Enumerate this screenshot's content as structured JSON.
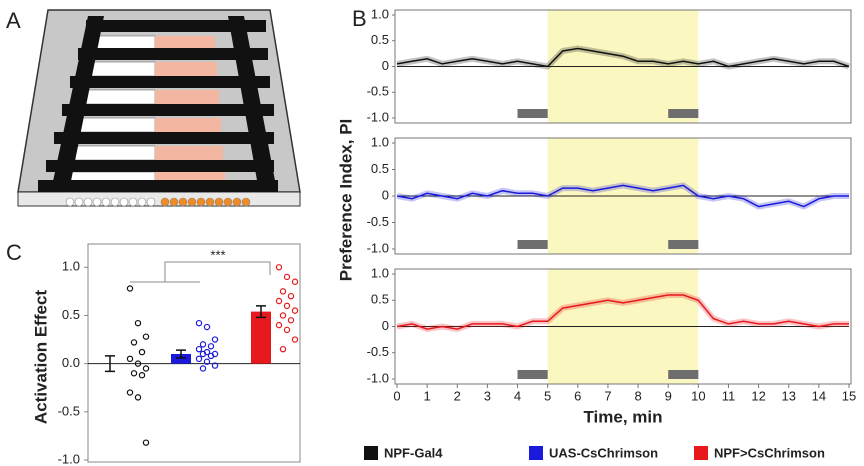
{
  "panel_a": {
    "label": "A"
  },
  "chart_data": [
    {
      "type": "line",
      "label": "B",
      "x": [
        0,
        0.5,
        1,
        1.5,
        2,
        2.5,
        3,
        3.5,
        4,
        4.5,
        5,
        5.5,
        6,
        6.5,
        7,
        7.5,
        8,
        8.5,
        9,
        9.5,
        10,
        10.5,
        11,
        11.5,
        12,
        12.5,
        13,
        13.5,
        14,
        14.5,
        15
      ],
      "series": [
        {
          "name": "NPF-Gal4",
          "color": "#111111",
          "values": [
            0.05,
            0.1,
            0.15,
            0.05,
            0.1,
            0.15,
            0.1,
            0.05,
            0.1,
            0.05,
            0.0,
            0.3,
            0.35,
            0.3,
            0.25,
            0.2,
            0.1,
            0.1,
            0.05,
            0.1,
            0.05,
            0.1,
            0.0,
            0.05,
            0.1,
            0.15,
            0.1,
            0.05,
            0.1,
            0.1,
            0.0
          ]
        }
      ],
      "xlim": [
        0,
        15
      ],
      "ylim": [
        -1,
        1
      ],
      "yticks": [
        {
          "value": 1,
          "label": "1.0"
        },
        0.5,
        0,
        -0.5,
        {
          "value": -1,
          "label": "-1.0"
        }
      ],
      "highlight_x": [
        5,
        10
      ],
      "stim_x": [
        [
          4,
          5
        ],
        [
          9,
          10
        ]
      ]
    },
    {
      "type": "line",
      "x": [
        0,
        0.5,
        1,
        1.5,
        2,
        2.5,
        3,
        3.5,
        4,
        4.5,
        5,
        5.5,
        6,
        6.5,
        7,
        7.5,
        8,
        8.5,
        9,
        9.5,
        10,
        10.5,
        11,
        11.5,
        12,
        12.5,
        13,
        13.5,
        14,
        14.5,
        15
      ],
      "series": [
        {
          "name": "UAS-CsChrimson",
          "color": "#1a1adc",
          "values": [
            0,
            -0.05,
            0.05,
            0,
            -0.05,
            0.05,
            0,
            0.1,
            0.05,
            0.05,
            0,
            0.15,
            0.15,
            0.1,
            0.15,
            0.2,
            0.15,
            0.1,
            0.15,
            0.2,
            0.0,
            -0.05,
            0,
            -0.05,
            -0.2,
            -0.15,
            -0.1,
            -0.2,
            -0.05,
            0,
            0
          ]
        }
      ],
      "xlim": [
        0,
        15
      ],
      "ylim": [
        -1,
        1
      ],
      "yticks": [
        {
          "value": 1,
          "label": "1.0"
        },
        0.5,
        0,
        -0.5,
        {
          "value": -1,
          "label": "-1.0"
        }
      ],
      "ylabel": "Preference Index, PI",
      "highlight_x": [
        5,
        10
      ],
      "stim_x": [
        [
          4,
          5
        ],
        [
          9,
          10
        ]
      ]
    },
    {
      "type": "line",
      "x": [
        0,
        0.5,
        1,
        1.5,
        2,
        2.5,
        3,
        3.5,
        4,
        4.5,
        5,
        5.5,
        6,
        6.5,
        7,
        7.5,
        8,
        8.5,
        9,
        9.5,
        10,
        10.5,
        11,
        11.5,
        12,
        12.5,
        13,
        13.5,
        14,
        14.5,
        15
      ],
      "series": [
        {
          "name": "NPF>CsChrimson",
          "color": "#e8191c",
          "values": [
            0,
            0.05,
            -0.05,
            0,
            -0.05,
            0.05,
            0.05,
            0.05,
            0,
            0.1,
            0.1,
            0.35,
            0.4,
            0.45,
            0.5,
            0.45,
            0.5,
            0.55,
            0.6,
            0.6,
            0.5,
            0.15,
            0.05,
            0.1,
            0.05,
            0.05,
            0.1,
            0.05,
            0.0,
            0.05,
            0.05
          ]
        }
      ],
      "xlim": [
        0,
        15
      ],
      "ylim": [
        -1,
        1
      ],
      "yticks": [
        {
          "value": 1,
          "label": "1.0"
        },
        0.5,
        0,
        -0.5,
        {
          "value": -1,
          "label": "-1.0"
        }
      ],
      "xticks": [
        0,
        1,
        2,
        3,
        4,
        5,
        6,
        7,
        8,
        9,
        10,
        11,
        12,
        13,
        14,
        15
      ],
      "xlabel": "Time, min",
      "highlight_x": [
        5,
        10
      ],
      "stim_x": [
        [
          4,
          5
        ],
        [
          9,
          10
        ]
      ]
    },
    {
      "type": "bar",
      "label": "C",
      "ylabel": "Activation Effect",
      "annotation": "***",
      "categories": [
        null,
        null,
        null
      ],
      "values": [
        0,
        0.1,
        0.54
      ],
      "errors": [
        0.08,
        0.04,
        0.06
      ],
      "colors": [
        "#111111",
        "#1a1adc",
        "#e8191c"
      ],
      "points": [
        [
          0.78,
          0.42,
          0.28,
          0.22,
          0.12,
          0.05,
          0.0,
          -0.05,
          -0.1,
          -0.12,
          -0.3,
          -0.35,
          -0.82
        ],
        [
          0.42,
          0.38,
          0.25,
          0.2,
          0.18,
          0.15,
          0.12,
          0.1,
          0.1,
          0.08,
          0.05,
          0.02,
          -0.02,
          -0.05
        ],
        [
          1.0,
          0.9,
          0.85,
          0.75,
          0.7,
          0.65,
          0.6,
          0.55,
          0.5,
          0.45,
          0.4,
          0.35,
          0.25,
          0.15
        ]
      ],
      "ylim": [
        -1,
        1.2
      ],
      "yticks": [
        {
          "value": 1,
          "label": "1.0"
        },
        0.5,
        {
          "value": 0,
          "label": "0.0"
        },
        -0.5,
        {
          "value": -1,
          "label": "-1.0"
        }
      ]
    }
  ]
}
